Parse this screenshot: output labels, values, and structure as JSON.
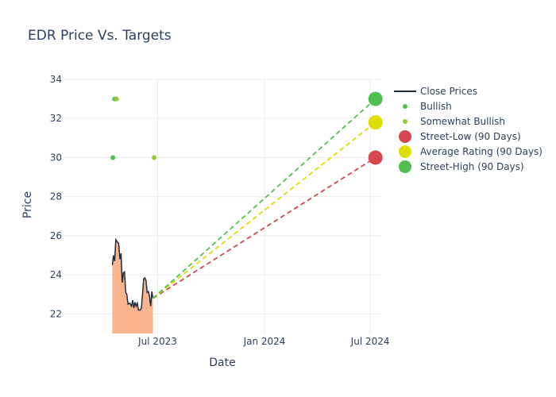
{
  "chart_data": {
    "type": "line",
    "title": "EDR Price Vs. Targets",
    "xlabel": "Date",
    "ylabel": "Price",
    "xlim": [
      "2023-01-20",
      "2024-07-20"
    ],
    "ylim": [
      21,
      34
    ],
    "x_ticks": [
      {
        "date": "2023-07-01",
        "label": "Jul 2023"
      },
      {
        "date": "2024-01-01",
        "label": "Jan 2024"
      },
      {
        "date": "2024-07-01",
        "label": "Jul 2024"
      }
    ],
    "y_ticks": [
      22,
      24,
      26,
      28,
      30,
      32,
      34
    ],
    "grid": true,
    "legend_position": "right",
    "series": [
      {
        "name": "Close Prices",
        "kind": "line-area",
        "color": "#1f2d3d",
        "fill": "#fbb48e",
        "points": [
          [
            "2023-04-14",
            24.5
          ],
          [
            "2023-04-16",
            25.0
          ],
          [
            "2023-04-18",
            24.7
          ],
          [
            "2023-04-20",
            25.8
          ],
          [
            "2023-04-22",
            25.7
          ],
          [
            "2023-04-25",
            25.6
          ],
          [
            "2023-04-27",
            24.8
          ],
          [
            "2023-04-29",
            25.1
          ],
          [
            "2023-05-01",
            23.6
          ],
          [
            "2023-05-03",
            24.1
          ],
          [
            "2023-05-05",
            24.15
          ],
          [
            "2023-05-07",
            23.1
          ],
          [
            "2023-05-09",
            23.0
          ],
          [
            "2023-05-11",
            22.5
          ],
          [
            "2023-05-14",
            22.55
          ],
          [
            "2023-05-17",
            22.4
          ],
          [
            "2023-05-19",
            22.7
          ],
          [
            "2023-05-21",
            22.3
          ],
          [
            "2023-05-23",
            22.6
          ],
          [
            "2023-05-25",
            22.4
          ],
          [
            "2023-05-27",
            22.55
          ],
          [
            "2023-05-29",
            22.2
          ],
          [
            "2023-06-01",
            22.2
          ],
          [
            "2023-06-03",
            22.3
          ],
          [
            "2023-06-05",
            23.0
          ],
          [
            "2023-06-07",
            23.8
          ],
          [
            "2023-06-09",
            23.85
          ],
          [
            "2023-06-11",
            23.7
          ],
          [
            "2023-06-13",
            23.1
          ],
          [
            "2023-06-15",
            23.15
          ],
          [
            "2023-06-17",
            22.9
          ],
          [
            "2023-06-19",
            22.4
          ],
          [
            "2023-06-21",
            23.15
          ],
          [
            "2023-06-23",
            22.8
          ]
        ]
      },
      {
        "name": "Bullish",
        "kind": "markers",
        "color": "#4fc04f",
        "points": [
          [
            "2023-04-15",
            30
          ],
          [
            "2023-04-18",
            33
          ]
        ]
      },
      {
        "name": "Somewhat Bullish",
        "kind": "markers",
        "color": "#8fcc2d",
        "points": [
          [
            "2023-04-21",
            33
          ],
          [
            "2023-06-25",
            30
          ]
        ]
      },
      {
        "name": "Street-Low (90 Days)",
        "kind": "target",
        "color": "#d6464f",
        "points": [
          [
            "2023-06-23",
            22.8
          ],
          [
            "2024-07-10",
            30
          ]
        ]
      },
      {
        "name": "Average Rating (90 Days)",
        "kind": "target",
        "color": "#dede00",
        "points": [
          [
            "2023-06-23",
            22.8
          ],
          [
            "2024-07-10",
            31.8
          ]
        ]
      },
      {
        "name": "Street-High (90 Days)",
        "kind": "target",
        "color": "#4fc04f",
        "points": [
          [
            "2023-06-23",
            22.8
          ],
          [
            "2024-07-10",
            33
          ]
        ]
      }
    ]
  }
}
